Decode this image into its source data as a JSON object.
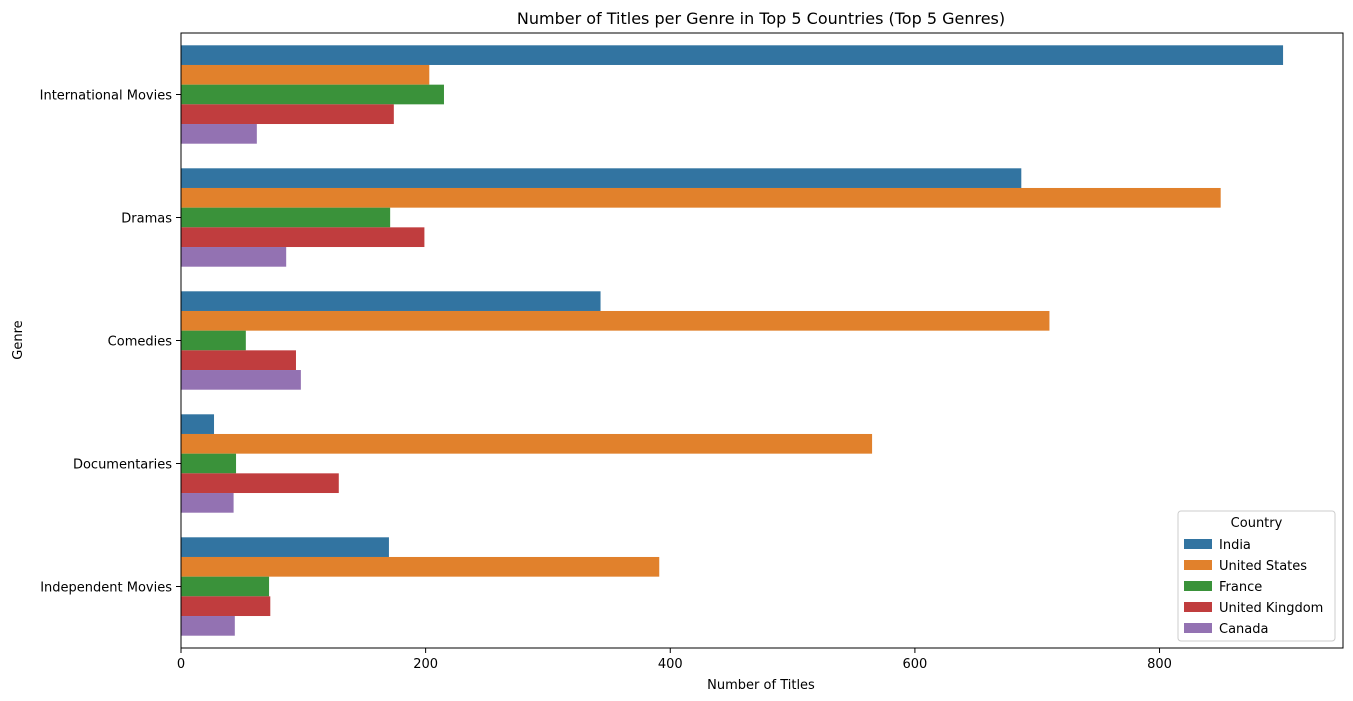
{
  "chart_data": {
    "type": "bar",
    "orientation": "horizontal",
    "title": "Number of Titles per Genre in Top 5 Countries (Top 5 Genres)",
    "xlabel": "Number of Titles",
    "ylabel": "Genre",
    "xlim": [
      0,
      950
    ],
    "xticks": [
      0,
      200,
      400,
      600,
      800
    ],
    "grid": false,
    "legend": {
      "title": "Country",
      "placement": "lower right"
    },
    "categories": [
      "International Movies",
      "Dramas",
      "Comedies",
      "Documentaries",
      "Independent Movies"
    ],
    "series": [
      {
        "name": "India",
        "color": "#3274a1",
        "values": [
          901,
          687,
          343,
          27,
          170
        ]
      },
      {
        "name": "United States",
        "color": "#e1812c",
        "values": [
          203,
          850,
          710,
          565,
          391
        ]
      },
      {
        "name": "France",
        "color": "#3a923a",
        "values": [
          215,
          171,
          53,
          45,
          72
        ]
      },
      {
        "name": "United Kingdom",
        "color": "#c03d3e",
        "values": [
          174,
          199,
          94,
          129,
          73
        ]
      },
      {
        "name": "Canada",
        "color": "#9372b2",
        "values": [
          62,
          86,
          98,
          43,
          44
        ]
      }
    ]
  }
}
